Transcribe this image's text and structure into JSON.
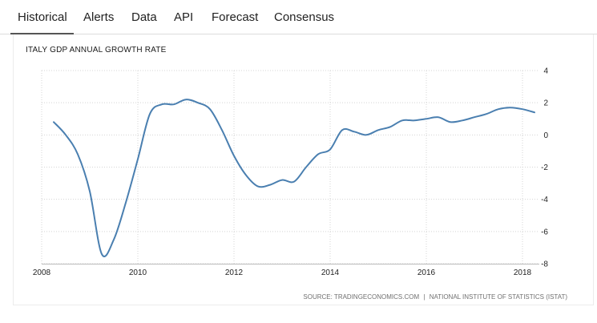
{
  "tabs": [
    {
      "label": "Historical",
      "active": true
    },
    {
      "label": "Alerts",
      "active": false
    },
    {
      "label": "Data",
      "active": false
    },
    {
      "label": "API",
      "active": false
    },
    {
      "label": "Forecast",
      "active": false
    },
    {
      "label": "Consensus",
      "active": false
    }
  ],
  "source": {
    "prefix": "SOURCE: TRADINGECONOMICS.COM",
    "separator": "|",
    "provider": "NATIONAL INSTITUTE OF STATISTICS (ISTAT)"
  },
  "chart_data": {
    "type": "line",
    "title": "ITALY GDP ANNUAL GROWTH RATE",
    "xlabel": "",
    "ylabel": "",
    "x_ticks": [
      "2008",
      "2010",
      "2012",
      "2014",
      "2016",
      "2018"
    ],
    "y_ticks": [
      "4",
      "2",
      "0",
      "-2",
      "-4",
      "-6",
      "-8"
    ],
    "xlim": [
      2008,
      2018.35
    ],
    "ylim": [
      -8,
      4
    ],
    "grid": true,
    "line_color": "#4a7fb0",
    "series": [
      {
        "name": "",
        "x": [
          2008.25,
          2008.5,
          2008.75,
          2009.0,
          2009.25,
          2009.5,
          2009.75,
          2010.0,
          2010.25,
          2010.5,
          2010.75,
          2011.0,
          2011.25,
          2011.5,
          2011.75,
          2012.0,
          2012.25,
          2012.5,
          2012.75,
          2013.0,
          2013.25,
          2013.5,
          2013.75,
          2014.0,
          2014.25,
          2014.5,
          2014.75,
          2015.0,
          2015.25,
          2015.5,
          2015.75,
          2016.0,
          2016.25,
          2016.5,
          2016.75,
          2017.0,
          2017.25,
          2017.5,
          2017.75,
          2018.0,
          2018.25
        ],
        "values": [
          0.8,
          0.0,
          -1.2,
          -3.5,
          -7.4,
          -6.5,
          -4.2,
          -1.5,
          1.3,
          1.9,
          1.9,
          2.2,
          2.0,
          1.6,
          0.3,
          -1.3,
          -2.5,
          -3.2,
          -3.1,
          -2.8,
          -2.9,
          -2.0,
          -1.2,
          -0.9,
          0.3,
          0.2,
          0.0,
          0.3,
          0.5,
          0.9,
          0.9,
          1.0,
          1.1,
          0.8,
          0.9,
          1.1,
          1.3,
          1.6,
          1.7,
          1.6,
          1.4
        ]
      }
    ]
  }
}
